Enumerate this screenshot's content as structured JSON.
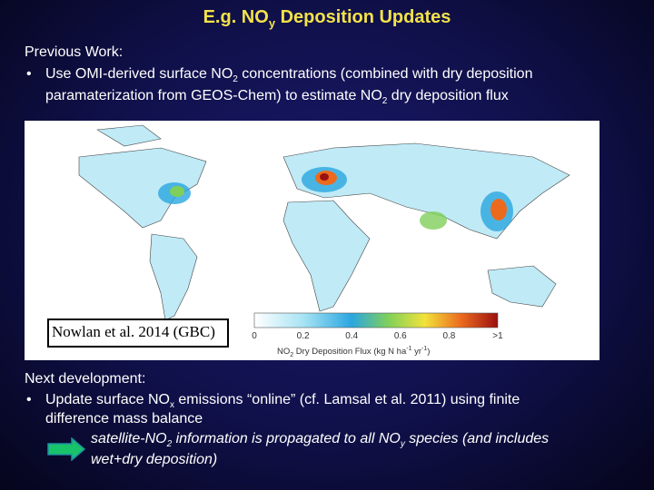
{
  "title": [
    {
      "text": "E.g. NO"
    },
    {
      "text": "y",
      "sub": true
    },
    {
      "text": " Deposition Updates"
    }
  ],
  "previous": {
    "heading": "Previous Work:",
    "bullet": "•",
    "lines": [
      [
        {
          "text": "Use OMI-derived surface NO"
        },
        {
          "text": "2",
          "sub": true
        },
        {
          "text": " concentrations (combined with dry deposition"
        }
      ],
      [
        {
          "text": "paramaterization from GEOS-Chem) to estimate NO"
        },
        {
          "text": "2",
          "sub": true
        },
        {
          "text": " dry deposition flux"
        }
      ]
    ]
  },
  "figure": {
    "citation": "Nowlan et al. 2014 (GBC)",
    "colorbar_ticks": [
      "0",
      "0.2",
      "0.4",
      "0.6",
      "0.8",
      ">1"
    ],
    "colorbar_label": [
      {
        "text": "NO"
      },
      {
        "text": "2",
        "sub": true
      },
      {
        "text": " Dry Deposition Flux (kg N ha"
      },
      {
        "text": "-1",
        "sup": true
      },
      {
        "text": " yr"
      },
      {
        "text": "-1",
        "sup": true
      },
      {
        "text": ")"
      }
    ]
  },
  "next": {
    "heading": "Next development:",
    "bullet": "•",
    "lines": [
      [
        {
          "text": "Update surface NO"
        },
        {
          "text": "x",
          "sub": true
        },
        {
          "text": " emissions “online” (cf. Lamsal et al. 2011) using finite"
        }
      ],
      [
        {
          "text": "difference mass balance"
        }
      ]
    ],
    "result": [
      [
        {
          "text": "satellite-NO"
        },
        {
          "text": "2",
          "sub": true
        },
        {
          "text": " information is propagated to all NO"
        },
        {
          "text": "y",
          "sub": true
        },
        {
          "text": " species (and includes"
        }
      ],
      [
        {
          "text": "wet+dry deposition)"
        }
      ]
    ]
  }
}
